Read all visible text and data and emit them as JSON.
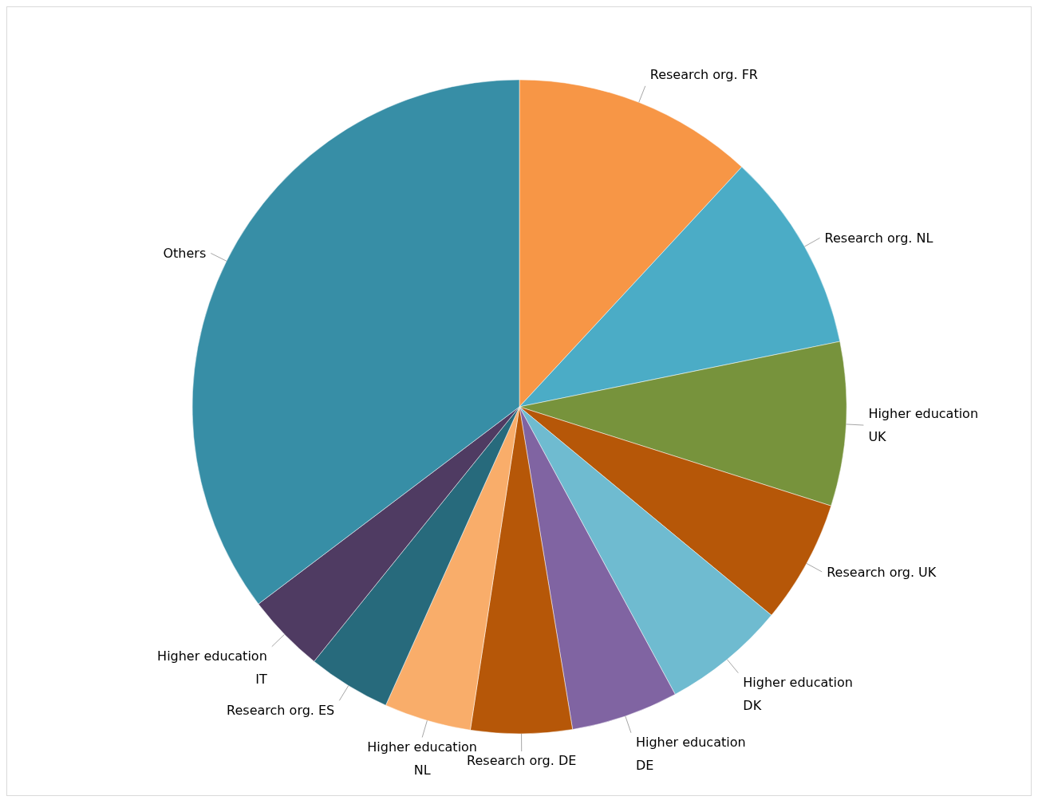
{
  "chart_data": {
    "type": "pie",
    "categories": [
      "Research org. FR",
      "Research org. NL",
      "Higher education UK",
      "Research org. UK",
      "Higher education DK",
      "Higher education DE",
      "Research org. DE",
      "Higher education NL",
      "Research org. ES",
      "Higher education IT",
      "Others"
    ],
    "values": [
      11.9,
      9.9,
      8.1,
      6.1,
      6.1,
      5.3,
      5.0,
      4.3,
      4.1,
      3.9,
      35.3
    ],
    "colors": [
      "#f79646",
      "#4bacc6",
      "#77933c",
      "#b65708",
      "#6fbbd0",
      "#8064a2",
      "#b65708",
      "#f9ad6a",
      "#276a7c",
      "#4f3b62",
      "#378ea6"
    ],
    "legend": false
  }
}
